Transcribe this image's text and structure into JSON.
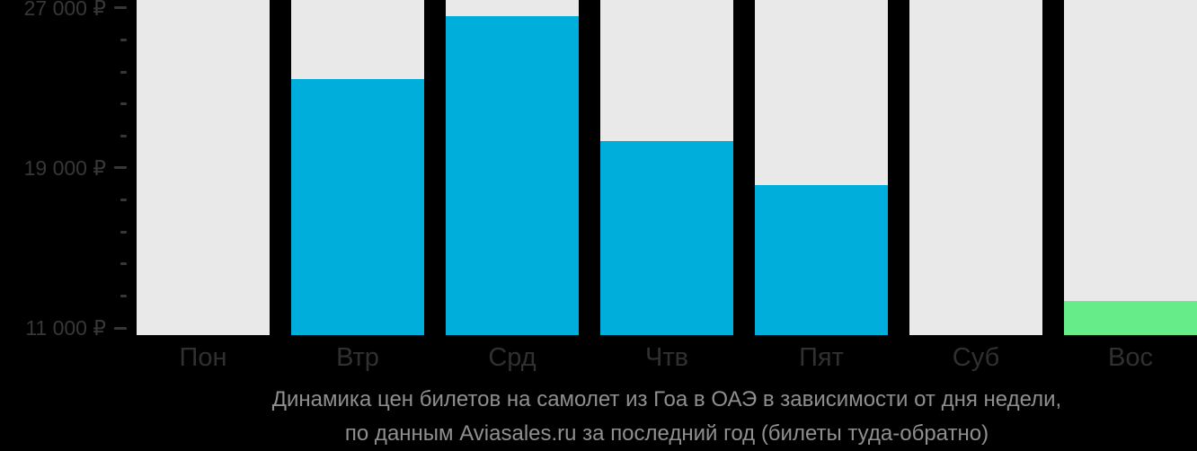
{
  "title": {
    "line1": "Динамика цен билетов на самолет из Гоа в ОАЭ в зависимости от дня недели,",
    "line2": "по данным Aviasales.ru за последний год (билеты туда-обратно)"
  },
  "colors": {
    "background": "#000000",
    "bar_no_data": "#e9e9e9",
    "bar_price": "#00aedc",
    "bar_highlight": "#66ec89",
    "y_axis_text": "#373737",
    "x_axis_text": "#303030",
    "title_text": "#8f8f8f"
  },
  "chart_data": {
    "type": "bar",
    "title": "Динамика цен билетов на самолет из Гоа в ОАЭ в зависимости от дня недели, по данным Aviasales.ru за последний год (билеты туда-обратно)",
    "categories": [
      "Пон",
      "Втр",
      "Срд",
      "Чтв",
      "Пят",
      "Суб",
      "Вос"
    ],
    "values": [
      null,
      23450,
      26600,
      20350,
      18150,
      null,
      12350
    ],
    "no_data_categories": [
      "Пон",
      "Суб"
    ],
    "highlight_category": "Вос",
    "currency": "₽",
    "y_tick_labels": [
      "27 000 ₽",
      "19 000 ₽",
      "11 000 ₽"
    ],
    "y_major_ticks": [
      27000,
      19000,
      11000
    ],
    "y_minor_tick_step": 1600,
    "ylim": [
      10640,
      27400
    ],
    "xlabel": "",
    "ylabel": "",
    "grid": false,
    "legend": "none"
  }
}
